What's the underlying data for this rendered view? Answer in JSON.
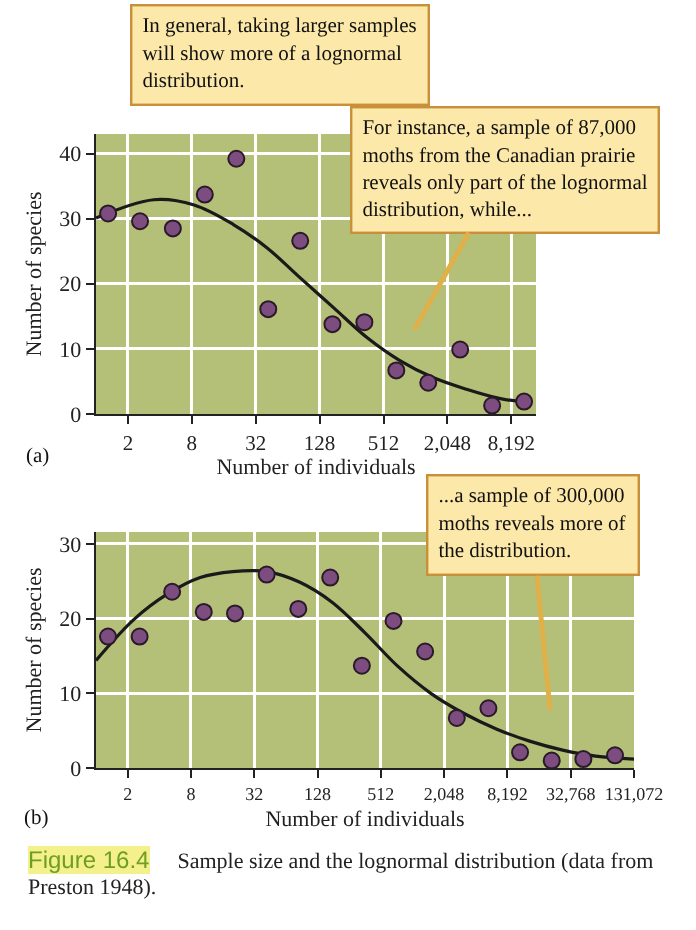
{
  "chart_data": [
    {
      "type": "scatter",
      "xlabel": "Number of individuals",
      "ylabel": "Number of species",
      "log": "x",
      "grid": true,
      "legend": false,
      "xlim": [
        1,
        14000
      ],
      "xticks": [
        2,
        8,
        32,
        128,
        512,
        {
          "value": 2048,
          "label": "2,048"
        },
        {
          "value": 8192,
          "label": "8,192"
        }
      ],
      "ylim": [
        0,
        43
      ],
      "yticks": [
        0,
        10,
        20,
        30,
        40
      ],
      "series": [
        {
          "type": "scatter",
          "marker": "circle",
          "color": "#7d4d80",
          "x": [
            1.3,
            2.6,
            5.3,
            10.6,
            21,
            42,
            84,
            169,
            338,
            676,
            1351,
            2702,
            5405,
            10809
          ],
          "values": [
            30.8,
            29.6,
            28.5,
            33.7,
            39.2,
            16.1,
            26.6,
            13.8,
            14.1,
            6.7,
            4.8,
            9.9,
            1.3,
            1.9
          ]
        },
        {
          "type": "line",
          "color": "#1a1a1a",
          "x": [
            1,
            3.5,
            8.4,
            19.7,
            41,
            84,
            174,
            360,
            730,
            1500,
            3100,
            6300,
            10000
          ],
          "values": [
            30.1,
            32.9,
            32.1,
            29.1,
            25.5,
            20.9,
            16.3,
            11.7,
            8.2,
            5.6,
            3.8,
            2.4,
            1.9
          ]
        }
      ],
      "annotations": [
        "In general, taking larger samples will show more of a lognormal distribution.",
        "For instance, a sample of 87,000 moths from the Canadian prairie reveals only part of the lognormal distribution, while...",
        "(a)"
      ]
    },
    {
      "type": "scatter",
      "xlabel": "Number of individuals",
      "ylabel": "Number of species",
      "log": "x",
      "grid": true,
      "legend": false,
      "xlim": [
        1,
        131072
      ],
      "xticks": [
        2,
        8,
        32,
        128,
        512,
        {
          "value": 2048,
          "label": "2,048"
        },
        {
          "value": 8192,
          "label": "8,192"
        },
        {
          "value": 32768,
          "label": "32,768"
        },
        {
          "value": 131072,
          "label": "131,072"
        }
      ],
      "ylim": [
        0,
        31.6
      ],
      "yticks": [
        0,
        10,
        20,
        30
      ],
      "series": [
        {
          "type": "scatter",
          "marker": "circle",
          "color": "#7d4d80",
          "x": [
            1.3,
            2.6,
            5.3,
            10.6,
            21,
            42,
            84,
            169,
            338,
            676,
            1351,
            2702,
            5405,
            10809,
            21619,
            43238,
            86475
          ],
          "values": [
            17.6,
            17.6,
            23.6,
            20.9,
            20.7,
            25.9,
            21.3,
            25.5,
            13.7,
            19.7,
            15.6,
            6.7,
            8.0,
            2.1,
            1.0,
            1.2,
            1.7
          ]
        },
        {
          "type": "line",
          "color": "#1a1a1a",
          "x": [
            1,
            2.3,
            4.8,
            9.8,
            20,
            42,
            86,
            176,
            362,
            745,
            1530,
            3170,
            6500,
            13300,
            27500,
            56600,
            131072
          ],
          "values": [
            14.4,
            19.9,
            23.3,
            25.5,
            26.3,
            26.3,
            24.9,
            22.2,
            18.1,
            13.6,
            10.0,
            7.3,
            5.2,
            3.6,
            2.4,
            1.6,
            1.2
          ]
        }
      ],
      "annotations": [
        "...a sample of 300,000 moths reveals more of the distribution.",
        "(b)",
        "Figure 16.4",
        "Sample size and the lognormal distribution (data from Preston 1948)."
      ]
    }
  ]
}
